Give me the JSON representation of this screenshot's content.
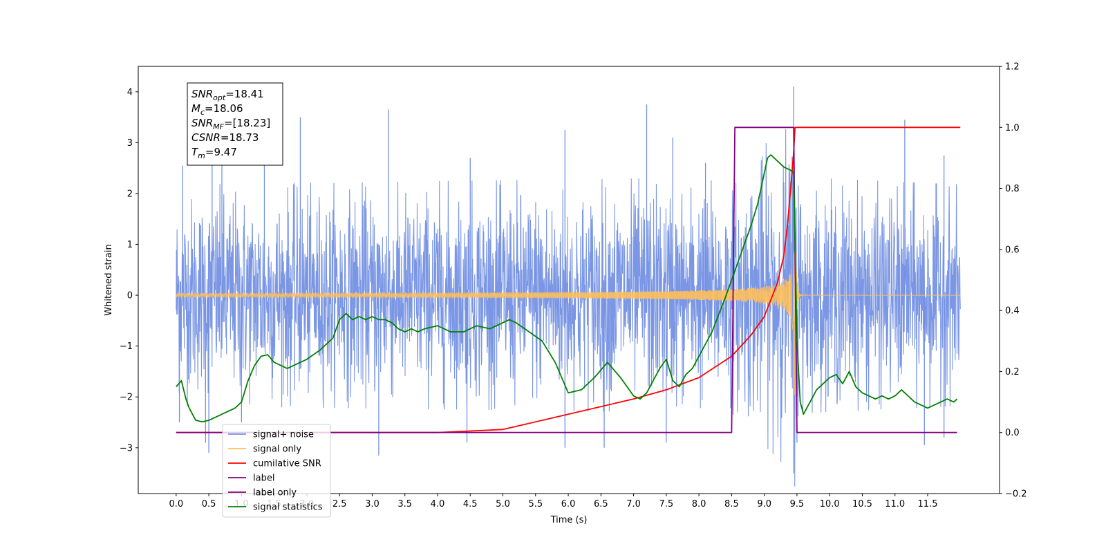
{
  "chart_data": {
    "type": "line",
    "xlabel": "Time (s)",
    "ylabel": "Whitened strain",
    "xlim": [
      -0.58,
      12.6
    ],
    "ylim": [
      -3.9,
      4.5
    ],
    "y2lim": [
      -0.2,
      1.2
    ],
    "x_ticks": [
      0.0,
      0.5,
      1.0,
      1.5,
      2.0,
      2.5,
      3.0,
      3.5,
      4.0,
      4.5,
      5.0,
      5.5,
      6.0,
      6.5,
      7.0,
      7.5,
      8.0,
      8.5,
      9.0,
      9.5,
      10.0,
      10.5,
      11.0,
      11.5
    ],
    "x_tick_labels": [
      "0.0",
      "0.5",
      "1.0",
      "1.5",
      "2.0",
      "2.5",
      "3.0",
      "3.5",
      "4.0",
      "4.5",
      "5.0",
      "5.5",
      "6.0",
      "6.5",
      "7.0",
      "7.5",
      "8.0",
      "8.5",
      "9.0",
      "9.5",
      "10.0",
      "10.5",
      "11.0",
      "11.5"
    ],
    "y_ticks": [
      -3,
      -2,
      -1,
      0,
      1,
      2,
      3,
      4
    ],
    "y_tick_labels": [
      "−3",
      "−2",
      "−1",
      "0",
      "1",
      "2",
      "3",
      "4"
    ],
    "y2_ticks": [
      -0.2,
      0.0,
      0.2,
      0.4,
      0.6,
      0.8,
      1.0,
      1.2
    ],
    "y2_tick_labels": [
      "−0.2",
      "0.0",
      "0.2",
      "0.4",
      "0.6",
      "0.8",
      "1.0",
      "1.2"
    ],
    "grid": false,
    "legend_position": "lower-left",
    "annotation": [
      {
        "base": "SNR",
        "sub": "opt",
        "value": "=18.41"
      },
      {
        "base": "M",
        "sub": "c",
        "value": "=18.06"
      },
      {
        "base": "SNR",
        "sub": "MF",
        "value": "=[18.23]"
      },
      {
        "base": "CSNR",
        "sub": "",
        "value": "=18.73"
      },
      {
        "base": "T",
        "sub": "m",
        "value": "=9.47"
      }
    ],
    "series": [
      {
        "name": "signal+ noise",
        "axis": "left",
        "color": "#7390e3",
        "kind": "noise_band",
        "x_range": [
          0.0,
          12.0
        ],
        "band_envelope": [
          [
            0.0,
            1.5
          ],
          [
            8.5,
            1.6
          ],
          [
            9.3,
            2.3
          ],
          [
            9.47,
            2.6
          ],
          [
            9.6,
            1.6
          ],
          [
            12.0,
            1.5
          ]
        ],
        "spike_peaks": [
          {
            "x": 0.1,
            "y": 2.55
          },
          {
            "x": 0.55,
            "y": 3.0
          },
          {
            "x": 0.7,
            "y": 2.7
          },
          {
            "x": 1.35,
            "y": 3.45
          },
          {
            "x": 1.9,
            "y": 3.5
          },
          {
            "x": 3.25,
            "y": 3.65
          },
          {
            "x": 4.5,
            "y": 2.7
          },
          {
            "x": 5.95,
            "y": 3.25
          },
          {
            "x": 7.2,
            "y": 3.75
          },
          {
            "x": 7.6,
            "y": 3.1
          },
          {
            "x": 8.1,
            "y": 2.6
          },
          {
            "x": 9.45,
            "y": 4.1
          },
          {
            "x": 11.15,
            "y": 3.45
          },
          {
            "x": 11.75,
            "y": 2.75
          },
          {
            "x": 0.05,
            "y": -2.5
          },
          {
            "x": 0.45,
            "y": -2.9
          },
          {
            "x": 0.5,
            "y": -3.1
          },
          {
            "x": 1.0,
            "y": -2.5
          },
          {
            "x": 3.1,
            "y": -3.15
          },
          {
            "x": 4.45,
            "y": -2.9
          },
          {
            "x": 5.95,
            "y": -3.0
          },
          {
            "x": 6.55,
            "y": -3.0
          },
          {
            "x": 7.5,
            "y": -2.9
          },
          {
            "x": 9.45,
            "y": -3.5
          },
          {
            "x": 9.5,
            "y": -2.9
          },
          {
            "x": 11.45,
            "y": -2.95
          },
          {
            "x": 11.75,
            "y": -2.8
          }
        ]
      },
      {
        "name": "signal only",
        "axis": "left",
        "color": "#ffbf5a",
        "kind": "chirp",
        "x_range": [
          0.0,
          12.0
        ],
        "merger_time": 9.47,
        "peak_amplitude": 2.4
      },
      {
        "name": "cumilative SNR",
        "axis": "right",
        "color": "#ff0000",
        "kind": "line",
        "x": [
          0.0,
          4.0,
          5.0,
          6.0,
          7.0,
          7.5,
          8.0,
          8.5,
          8.8,
          9.0,
          9.2,
          9.3,
          9.35,
          9.4,
          9.45,
          9.47,
          12.0
        ],
        "y": [
          0.0,
          0.0,
          0.01,
          0.06,
          0.11,
          0.14,
          0.18,
          0.25,
          0.32,
          0.38,
          0.49,
          0.58,
          0.67,
          0.79,
          0.92,
          1.0,
          1.0
        ]
      },
      {
        "name": "label",
        "axis": "right",
        "color": "#800080",
        "kind": "line",
        "x": [
          0.0,
          8.5,
          8.55,
          9.45,
          9.5,
          11.95
        ],
        "y": [
          0.0,
          0.0,
          1.0,
          1.0,
          0.0,
          0.0
        ]
      },
      {
        "name": "label only",
        "axis": "right",
        "color": "#800080",
        "kind": "hidden",
        "x": [],
        "y": []
      },
      {
        "name": "signal statistics",
        "axis": "right",
        "color": "#008000",
        "kind": "line",
        "x": [
          0.0,
          0.08,
          0.15,
          0.2,
          0.3,
          0.4,
          0.5,
          0.6,
          0.7,
          0.8,
          0.9,
          1.0,
          1.1,
          1.2,
          1.3,
          1.4,
          1.5,
          1.6,
          1.7,
          1.8,
          1.9,
          2.0,
          2.2,
          2.4,
          2.5,
          2.6,
          2.7,
          2.8,
          2.9,
          3.0,
          3.1,
          3.2,
          3.3,
          3.4,
          3.5,
          3.6,
          3.7,
          3.8,
          4.0,
          4.2,
          4.4,
          4.6,
          4.8,
          5.0,
          5.1,
          5.2,
          5.4,
          5.6,
          5.8,
          6.0,
          6.2,
          6.4,
          6.6,
          6.8,
          7.0,
          7.1,
          7.2,
          7.3,
          7.4,
          7.5,
          7.6,
          7.7,
          7.8,
          7.9,
          8.0,
          8.2,
          8.4,
          8.6,
          8.8,
          8.9,
          9.0,
          9.05,
          9.1,
          9.2,
          9.3,
          9.4,
          9.45,
          9.5,
          9.55,
          9.6,
          9.7,
          9.8,
          9.9,
          10.0,
          10.1,
          10.2,
          10.3,
          10.4,
          10.5,
          10.6,
          10.7,
          10.8,
          10.9,
          11.0,
          11.1,
          11.2,
          11.3,
          11.4,
          11.5,
          11.6,
          11.7,
          11.8,
          11.9,
          11.95
        ],
        "y": [
          0.15,
          0.17,
          0.11,
          0.08,
          0.04,
          0.035,
          0.04,
          0.05,
          0.06,
          0.07,
          0.08,
          0.1,
          0.17,
          0.22,
          0.25,
          0.255,
          0.23,
          0.22,
          0.21,
          0.22,
          0.23,
          0.24,
          0.27,
          0.31,
          0.37,
          0.39,
          0.37,
          0.38,
          0.37,
          0.38,
          0.37,
          0.37,
          0.36,
          0.34,
          0.33,
          0.34,
          0.33,
          0.34,
          0.35,
          0.33,
          0.33,
          0.35,
          0.34,
          0.36,
          0.37,
          0.36,
          0.33,
          0.3,
          0.23,
          0.13,
          0.14,
          0.18,
          0.23,
          0.18,
          0.12,
          0.11,
          0.13,
          0.17,
          0.21,
          0.24,
          0.17,
          0.15,
          0.19,
          0.21,
          0.25,
          0.33,
          0.44,
          0.56,
          0.68,
          0.75,
          0.85,
          0.9,
          0.91,
          0.89,
          0.87,
          0.86,
          0.85,
          0.3,
          0.1,
          0.06,
          0.1,
          0.14,
          0.16,
          0.18,
          0.19,
          0.16,
          0.2,
          0.15,
          0.13,
          0.12,
          0.11,
          0.12,
          0.11,
          0.12,
          0.14,
          0.12,
          0.1,
          0.09,
          0.08,
          0.09,
          0.1,
          0.11,
          0.1,
          0.11
        ]
      }
    ]
  }
}
